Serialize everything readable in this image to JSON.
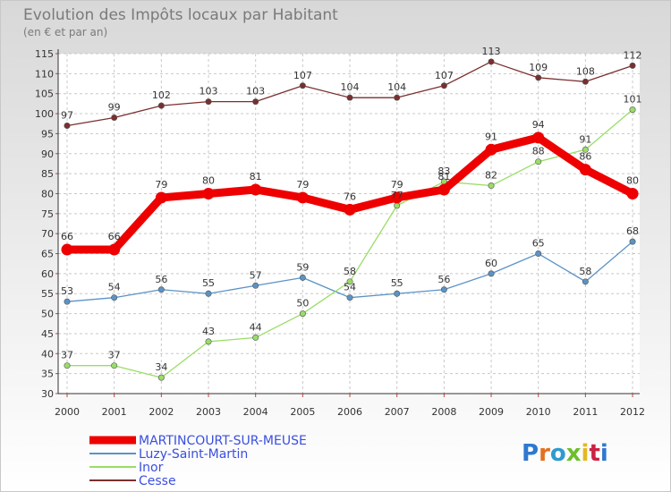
{
  "title": "Evolution des Impôts locaux par Habitant",
  "subtitle": "(en € et par an)",
  "logo": "Proxiti",
  "chart_data": {
    "type": "line",
    "title": "Evolution des Impôts locaux par Habitant",
    "subtitle": "(en € et par an)",
    "xlabel": "",
    "ylabel": "",
    "x": [
      2000,
      2001,
      2002,
      2003,
      2004,
      2005,
      2006,
      2007,
      2008,
      2009,
      2010,
      2011,
      2012
    ],
    "ylim": [
      30,
      115
    ],
    "yticks": [
      30,
      35,
      40,
      45,
      50,
      55,
      60,
      65,
      70,
      75,
      80,
      85,
      90,
      95,
      100,
      105,
      110,
      115
    ],
    "grid": true,
    "legend": "bottom-left",
    "series": [
      {
        "name": "MARTINCOURT-SUR-MEUSE",
        "color": "#ee0000",
        "values": [
          66,
          66,
          79,
          80,
          81,
          79,
          76,
          79,
          81,
          91,
          94,
          86,
          80
        ]
      },
      {
        "name": "Luzy-Saint-Martin",
        "color": "#5b93c6",
        "values": [
          53,
          54,
          56,
          55,
          57,
          59,
          54,
          55,
          56,
          60,
          65,
          58,
          68
        ]
      },
      {
        "name": "Inor",
        "color": "#99dd66",
        "values": [
          37,
          37,
          34,
          43,
          44,
          50,
          58,
          77,
          83,
          82,
          88,
          91,
          101
        ]
      },
      {
        "name": "Cesse",
        "color": "#7a2f2f",
        "values": [
          97,
          99,
          102,
          103,
          103,
          107,
          104,
          104,
          107,
          113,
          109,
          108,
          112
        ]
      }
    ]
  }
}
